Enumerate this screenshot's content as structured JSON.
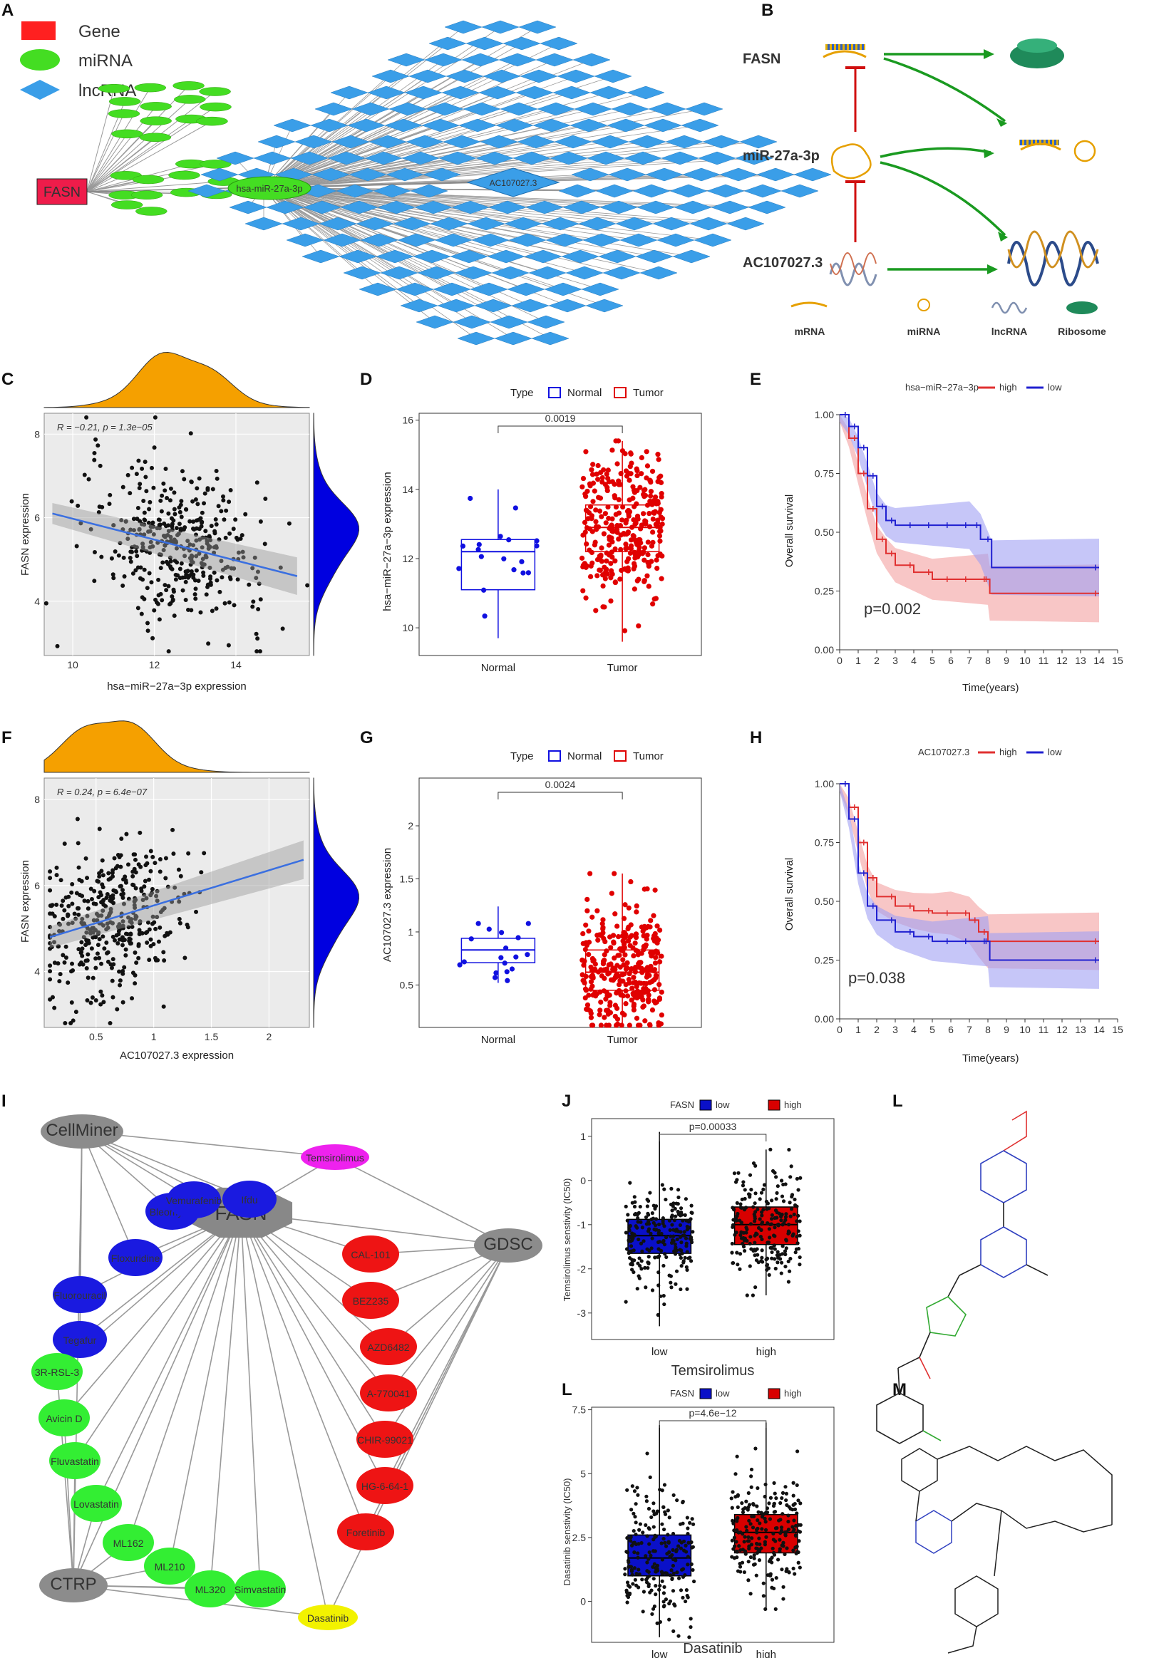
{
  "panels": {
    "A": {
      "label": "A",
      "legend": [
        {
          "name": "Gene",
          "color": "#ff2020"
        },
        {
          "name": "miRNA",
          "color": "#44dd22"
        },
        {
          "name": "lncRNA",
          "color": "#3a9ee8"
        }
      ],
      "gene": "FASN",
      "hub_mirna": "hsa-miR-27a-3p",
      "hub_lncrna": "AC107027.3"
    },
    "B": {
      "label": "B",
      "rows": [
        "FASN",
        "miR-27a-3p",
        "AC107027.3"
      ],
      "legend": [
        "mRNA",
        "miRNA",
        "lncRNA",
        "Ribosome"
      ]
    },
    "C": {
      "label": "C",
      "stat": "R = −0.21, p = 1.3e−05",
      "xlabel": "hsa−miR−27a−3p expression",
      "ylabel": "FASN expression"
    },
    "D": {
      "label": "D",
      "legend_title": "Type",
      "legend": [
        "Normal",
        "Tumor"
      ],
      "pvalue": "0.0019",
      "ylabel": "hsa−miR−27a−3p expression",
      "groups": [
        "Normal",
        "Tumor"
      ]
    },
    "E": {
      "label": "E",
      "legend_title": "hsa−miR−27a−3p",
      "legend": [
        "high",
        "low"
      ],
      "pvalue": "p=0.002",
      "ylabel": "Overall survival",
      "xlabel": "Time(years)"
    },
    "F": {
      "label": "F",
      "stat": "R = 0.24, p = 6.4e−07",
      "xlabel": "AC107027.3 expression",
      "ylabel": "FASN expression"
    },
    "G": {
      "label": "G",
      "legend_title": "Type",
      "legend": [
        "Normal",
        "Tumor"
      ],
      "pvalue": "0.0024",
      "ylabel": "AC107027.3 expression",
      "groups": [
        "Normal",
        "Tumor"
      ]
    },
    "H": {
      "label": "H",
      "legend_title": "AC107027.3",
      "legend": [
        "high",
        "low"
      ],
      "pvalue": "p=0.038",
      "ylabel": "Overall survival",
      "xlabel": "Time(years)"
    },
    "I": {
      "label": "I",
      "hub": "FASN",
      "databases": [
        "CellMiner",
        "GDSC",
        "CTRP"
      ],
      "blue_drugs": [
        "Bleomycin",
        "Vemurafenib",
        "Ifdu",
        "Floxuridine",
        "Fluorouracil",
        "Tegafur"
      ],
      "red_drugs": [
        "CAL-101",
        "BEZ235",
        "AZD6482",
        "A-770041",
        "CHIR-99021",
        "HG-6-64-1",
        "Foretinib"
      ],
      "green_drugs": [
        "3R-RSL-3",
        "Avicin D",
        "Fluvastatin",
        "Lovastatin",
        "ML162",
        "ML210",
        "ML320",
        "Simvastatin"
      ],
      "magenta_drug": "Temsirolimus",
      "yellow_drug": "Dasatinib"
    },
    "J": {
      "label": "J",
      "legend_title": "FASN",
      "legend": [
        "low",
        "high"
      ],
      "pvalue": "p=0.00033",
      "ylabel": "Temsirolimus senstivity (IC50)",
      "xlabel": "Temsirolimus",
      "groups": [
        "low",
        "high"
      ]
    },
    "K": {
      "label": "L",
      "legend_title": "FASN",
      "legend": [
        "low",
        "high"
      ],
      "pvalue": "p=4.6e−12",
      "ylabel": "Dasatinib senstivity (IC50)",
      "xlabel": "Dasatinib",
      "groups": [
        "low",
        "high"
      ]
    },
    "L": {
      "label": "L"
    },
    "M": {
      "label": "M"
    }
  },
  "chart_data": [
    {
      "type": "scatter",
      "panel": "C",
      "xlabel": "hsa−miR−27a−3p expression",
      "ylabel": "FASN expression",
      "xlim": [
        9.3,
        15.8
      ],
      "ylim": [
        2.7,
        8.5
      ],
      "xticks": [
        10,
        12,
        14
      ],
      "yticks": [
        4,
        6,
        8
      ],
      "trend": {
        "x": [
          9.5,
          15.5
        ],
        "y": [
          6.1,
          4.6
        ]
      }
    },
    {
      "type": "box",
      "panel": "D",
      "ylabel": "hsa−miR−27a−3p expression",
      "ylim": [
        9.2,
        16.2
      ],
      "yticks": [
        10,
        12,
        14,
        16
      ],
      "series": [
        {
          "name": "Normal",
          "q1": 11.1,
          "median": 12.2,
          "q3": 12.55,
          "min": 9.7,
          "max": 14.0
        },
        {
          "name": "Tumor",
          "q1": 12.2,
          "median": 12.9,
          "q3": 13.55,
          "min": 9.6,
          "max": 15.4
        }
      ]
    },
    {
      "type": "line",
      "panel": "E",
      "xlabel": "Time(years)",
      "ylabel": "Overall survival",
      "xlim": [
        0,
        15
      ],
      "ylim": [
        0,
        1
      ],
      "xticks": [
        0,
        1,
        2,
        3,
        4,
        5,
        6,
        7,
        8,
        9,
        10,
        11,
        12,
        13,
        14,
        15
      ],
      "yticks": [
        0,
        0.25,
        0.5,
        0.75,
        1.0
      ],
      "series": [
        {
          "name": "high",
          "x": [
            0,
            0.5,
            1,
            1.5,
            2,
            2.5,
            3,
            4,
            5,
            6,
            7,
            8,
            8.1,
            14
          ],
          "y": [
            1,
            0.9,
            0.75,
            0.6,
            0.47,
            0.41,
            0.36,
            0.33,
            0.3,
            0.3,
            0.3,
            0.3,
            0.24,
            0.24
          ]
        },
        {
          "name": "low",
          "x": [
            0,
            0.5,
            1,
            1.5,
            2,
            2.5,
            3,
            4,
            5,
            6,
            7,
            7.6,
            8.2,
            14
          ],
          "y": [
            1,
            0.95,
            0.86,
            0.74,
            0.61,
            0.55,
            0.53,
            0.53,
            0.53,
            0.53,
            0.53,
            0.47,
            0.35,
            0.35
          ]
        }
      ]
    },
    {
      "type": "scatter",
      "panel": "F",
      "xlabel": "AC107027.3 expression",
      "ylabel": "FASN expression",
      "xlim": [
        0.05,
        2.35
      ],
      "ylim": [
        2.7,
        8.5
      ],
      "xticks": [
        0.5,
        1.0,
        1.5,
        2.0
      ],
      "yticks": [
        4,
        6,
        8
      ],
      "trend": {
        "x": [
          0.1,
          2.3
        ],
        "y": [
          4.8,
          6.6
        ]
      }
    },
    {
      "type": "box",
      "panel": "G",
      "ylabel": "AC107027.3 expression",
      "ylim": [
        0.1,
        2.45
      ],
      "yticks": [
        0.5,
        1.0,
        1.5,
        2.0
      ],
      "series": [
        {
          "name": "Normal",
          "q1": 0.71,
          "median": 0.83,
          "q3": 0.94,
          "min": 0.52,
          "max": 1.24
        },
        {
          "name": "Tumor",
          "q1": 0.45,
          "median": 0.62,
          "q3": 0.83,
          "min": 0.12,
          "max": 1.55
        }
      ]
    },
    {
      "type": "line",
      "panel": "H",
      "xlabel": "Time(years)",
      "ylabel": "Overall survival",
      "xlim": [
        0,
        15
      ],
      "ylim": [
        0,
        1
      ],
      "xticks": [
        0,
        1,
        2,
        3,
        4,
        5,
        6,
        7,
        8,
        9,
        10,
        11,
        12,
        13,
        14,
        15
      ],
      "yticks": [
        0,
        0.25,
        0.5,
        0.75,
        1.0
      ],
      "series": [
        {
          "name": "high",
          "x": [
            0,
            0.5,
            1,
            1.5,
            2,
            3,
            4,
            5,
            6,
            7,
            7.5,
            8,
            14
          ],
          "y": [
            1,
            0.9,
            0.75,
            0.6,
            0.52,
            0.48,
            0.46,
            0.45,
            0.45,
            0.42,
            0.37,
            0.33,
            0.33
          ]
        },
        {
          "name": "low",
          "x": [
            0,
            0.5,
            1,
            1.5,
            2,
            3,
            4,
            5,
            6,
            7,
            8,
            8.1,
            14
          ],
          "y": [
            1,
            0.85,
            0.62,
            0.48,
            0.42,
            0.37,
            0.35,
            0.33,
            0.33,
            0.33,
            0.33,
            0.25,
            0.25
          ]
        }
      ]
    },
    {
      "type": "box",
      "panel": "J",
      "ylabel": "Temsirolimus senstivity (IC50)",
      "ylim": [
        -3.6,
        1.4
      ],
      "yticks": [
        -3,
        -2,
        -1,
        0,
        1
      ],
      "series": [
        {
          "name": "low",
          "q1": -1.65,
          "median": -1.25,
          "q3": -0.88,
          "min": -3.3,
          "max": 1.1
        },
        {
          "name": "high",
          "q1": -1.45,
          "median": -1.0,
          "q3": -0.6,
          "min": -2.6,
          "max": 0.7
        }
      ]
    },
    {
      "type": "box",
      "panel": "L",
      "ylabel": "Dasatinib senstivity (IC50)",
      "ylim": [
        -1.6,
        7.6
      ],
      "yticks": [
        0,
        2.5,
        5,
        7.5
      ],
      "series": [
        {
          "name": "low",
          "q1": 1.0,
          "median": 1.7,
          "q3": 2.6,
          "min": -1.4,
          "max": 6.9
        },
        {
          "name": "high",
          "q1": 1.9,
          "median": 2.7,
          "q3": 3.4,
          "min": -0.3,
          "max": 7.0
        }
      ]
    }
  ]
}
